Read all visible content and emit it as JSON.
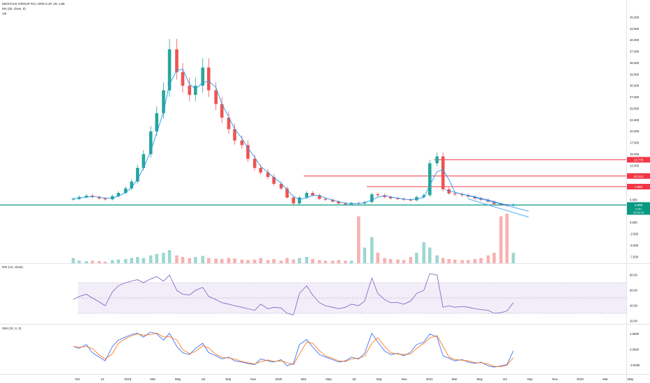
{
  "header": {
    "symbol_line": "MOSTACK GROUP PLC ORD 0.1P, 1D, LSE",
    "ma_label": "MA (20, close, 0)",
    "vol_label": "Vol"
  },
  "rsi_label": "RSI (14, close)",
  "smi_label": "SMI (10, 3, 3)",
  "colors": {
    "up": "#26a69a",
    "down": "#ef5350",
    "ma": "#2196f3",
    "level": "#f23645",
    "support": "#089981",
    "rsi_line": "#7e57c2",
    "rsi_band": "#ede7f6",
    "smi_main": "#2962ff",
    "smi_signal": "#ff6d00",
    "current_price": "#089981"
  },
  "chart_data": [
    {
      "type": "candlestick",
      "scale": "log",
      "x": [
        "2018-10-01",
        "2018-10-15",
        "2018-11-01",
        "2018-11-15",
        "2018-12-01",
        "2018-12-15",
        "2019-01-01",
        "2019-01-15",
        "2019-02-01",
        "2019-02-15",
        "2019-03-01",
        "2019-03-15",
        "2019-04-01",
        "2019-04-15",
        "2019-05-01",
        "2019-05-15",
        "2019-06-01",
        "2019-06-15",
        "2019-07-01",
        "2019-07-15",
        "2019-08-01",
        "2019-08-15",
        "2019-09-01",
        "2019-09-15",
        "2019-10-01",
        "2019-10-15",
        "2019-11-01",
        "2019-11-15",
        "2019-12-01",
        "2019-12-15",
        "2020-01-01",
        "2020-01-15",
        "2020-02-01",
        "2020-02-15",
        "2020-03-01",
        "2020-03-15",
        "2020-04-01",
        "2020-04-15",
        "2020-05-01",
        "2020-05-15",
        "2020-06-01",
        "2020-06-15",
        "2020-07-01",
        "2020-07-15",
        "2020-08-01",
        "2020-08-15",
        "2020-09-01",
        "2020-09-15",
        "2020-10-01",
        "2020-10-15",
        "2020-11-01",
        "2020-11-15",
        "2020-12-01",
        "2020-12-15",
        "2021-01-01",
        "2021-01-15",
        "2021-02-01",
        "2021-02-15",
        "2021-03-01",
        "2021-03-15",
        "2021-04-01",
        "2021-04-15",
        "2021-05-01",
        "2021-05-15",
        "2021-06-01",
        "2021-06-15",
        "2021-07-01",
        "2021-07-15",
        "2021-07-30"
      ],
      "close": [
        5.2,
        5.6,
        5.9,
        5.6,
        5.3,
        5.1,
        5.8,
        6.5,
        7.5,
        9.0,
        12.0,
        15.0,
        20.0,
        24.0,
        29.0,
        38.0,
        33.0,
        30.0,
        28.0,
        30.0,
        34.0,
        29.0,
        26.0,
        23.0,
        20.5,
        18.0,
        17.0,
        14.0,
        12.0,
        11.0,
        10.0,
        8.5,
        7.5,
        5.5,
        4.2,
        5.5,
        6.5,
        6.0,
        5.2,
        5.0,
        4.6,
        4.2,
        4.0,
        4.3,
        4.2,
        4.5,
        6.2,
        6.0,
        5.6,
        5.3,
        5.2,
        5.0,
        4.9,
        5.6,
        6.0,
        13.0,
        14.5,
        7.3,
        6.4,
        6.2,
        6.0,
        5.7,
        5.3,
        5.0,
        4.6,
        4.1,
        3.9,
        3.7,
        4.0
      ],
      "price_scale_ticks": [
        "45.000",
        "42.500",
        "40.000",
        "37.500",
        "35.000",
        "32.500",
        "30.000",
        "27.500",
        "25.000",
        "22.500",
        "20.000",
        "17.500",
        "15.000",
        "12.500",
        "10.000",
        "7.500",
        "5.000",
        "2.500",
        "0.000",
        "-2.500",
        "-5.000",
        "-7.500"
      ],
      "horizontal_levels": [
        "13.778",
        "10.213",
        "7.880"
      ],
      "current_price": "3.858",
      "current_price_extra": [
        "3.151",
        "16:59:29"
      ],
      "x_tick_labels": [
        "Oct",
        "12",
        "2019",
        "Mar",
        "May",
        "Jul",
        "Sep",
        "Nov",
        "2020",
        "Mar",
        "May",
        "Jul",
        "Sep",
        "Nov",
        "2021",
        "Mar",
        "May",
        "Jul",
        "Sep",
        "Nov",
        "2022",
        "Mar",
        "May"
      ],
      "volume_relative": [
        0.1,
        0.05,
        0.04,
        0.05,
        0.04,
        0.03,
        0.06,
        0.07,
        0.08,
        0.1,
        0.12,
        0.1,
        0.15,
        0.18,
        0.2,
        0.25,
        0.15,
        0.12,
        0.1,
        0.12,
        0.14,
        0.1,
        0.09,
        0.08,
        0.1,
        0.09,
        0.07,
        0.06,
        0.07,
        0.1,
        0.06,
        0.08,
        0.05,
        0.1,
        0.07,
        0.1,
        0.12,
        0.08,
        0.06,
        0.05,
        0.05,
        0.06,
        0.05,
        0.05,
        0.9,
        0.3,
        0.5,
        0.2,
        0.1,
        0.08,
        0.07,
        0.06,
        0.12,
        0.2,
        0.4,
        0.3,
        0.15,
        0.1,
        0.08,
        0.07,
        0.06,
        0.06,
        0.08,
        0.1,
        0.15,
        0.2,
        0.9,
        0.95,
        0.2
      ],
      "grid": false
    },
    {
      "type": "line",
      "name": "RSI (14, close)",
      "y_ticks": [
        "80.00",
        "60.00",
        "40.00",
        "20.00"
      ],
      "band": [
        30,
        70
      ],
      "values": [
        48,
        52,
        55,
        50,
        45,
        40,
        58,
        66,
        70,
        72,
        74,
        70,
        75,
        78,
        72,
        80,
        60,
        55,
        54,
        60,
        64,
        52,
        48,
        44,
        42,
        40,
        38,
        36,
        34,
        42,
        36,
        38,
        37,
        30,
        28,
        56,
        66,
        54,
        44,
        40,
        38,
        36,
        38,
        42,
        40,
        46,
        76,
        56,
        48,
        44,
        44,
        42,
        46,
        56,
        60,
        82,
        80,
        38,
        40,
        38,
        39,
        38,
        36,
        35,
        34,
        30,
        31,
        33,
        44
      ]
    },
    {
      "type": "line",
      "name": "SMI (10, 3, 3)",
      "y_ticks": [
        "2.5000",
        "0.0000",
        "-2.5000"
      ],
      "values": [
        0.5,
        0.2,
        0.8,
        -0.5,
        -1.2,
        -1.8,
        0.5,
        1.5,
        2.0,
        2.4,
        2.6,
        2.0,
        2.8,
        2.5,
        1.5,
        2.6,
        0.5,
        -0.5,
        -0.8,
        0.2,
        1.0,
        -0.5,
        -1.0,
        -1.5,
        -1.2,
        -1.8,
        -2.0,
        -2.2,
        -2.4,
        -1.5,
        -1.8,
        -2.0,
        -1.6,
        -2.6,
        -2.2,
        0.8,
        1.6,
        0.4,
        -0.8,
        -1.2,
        -1.6,
        -2.0,
        -1.8,
        -1.2,
        -1.5,
        -0.6,
        2.6,
        1.2,
        -0.2,
        -0.8,
        -0.6,
        -1.0,
        -0.4,
        0.8,
        1.2,
        2.5,
        2.0,
        -1.0,
        -1.4,
        -1.8,
        -1.6,
        -2.0,
        -2.2,
        -2.0,
        -2.6,
        -2.8,
        -2.6,
        -2.4,
        -0.2
      ]
    }
  ]
}
